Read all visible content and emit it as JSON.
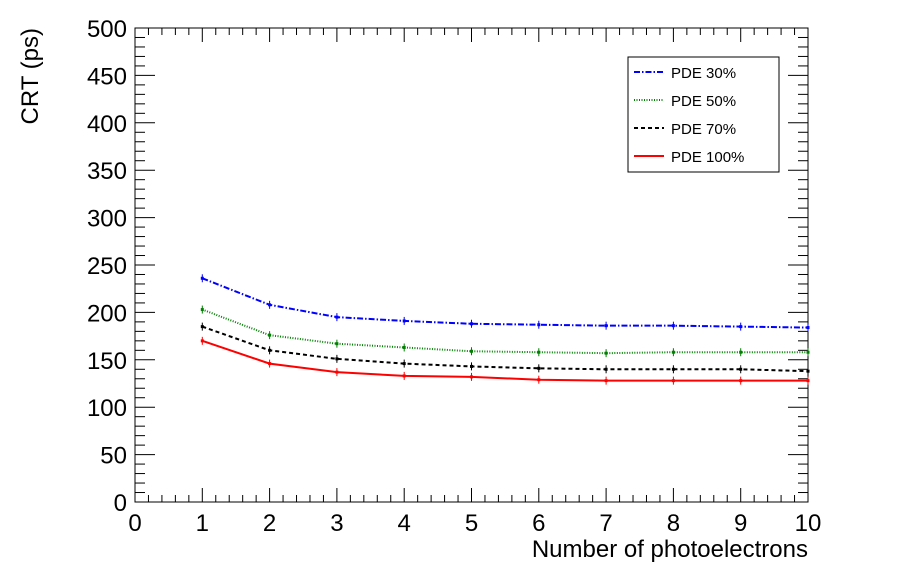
{
  "chart_data": {
    "type": "line",
    "xlabel": "Number of photoelectrons",
    "ylabel": "CRT (ps)",
    "xlim": [
      0,
      10
    ],
    "ylim": [
      0,
      500
    ],
    "xticks": [
      "0",
      "1",
      "2",
      "3",
      "4",
      "5",
      "6",
      "7",
      "8",
      "9",
      "10"
    ],
    "yticks": [
      "0",
      "50",
      "100",
      "150",
      "200",
      "250",
      "300",
      "350",
      "400",
      "450",
      "500"
    ],
    "grid": false,
    "legend_position": "top-right",
    "x": [
      1,
      2,
      3,
      4,
      5,
      6,
      7,
      8,
      9,
      10
    ],
    "series": [
      {
        "name": "PDE 30%",
        "color": "#0000ff",
        "dash": "dash-dot",
        "values": [
          236,
          208,
          195,
          191,
          188,
          187,
          186,
          186,
          185,
          184
        ]
      },
      {
        "name": "PDE 50%",
        "color": "#008000",
        "dash": "dotted",
        "values": [
          203,
          176,
          167,
          163,
          159,
          158,
          157,
          158,
          158,
          158
        ]
      },
      {
        "name": "PDE 70%",
        "color": "#000000",
        "dash": "dashed",
        "values": [
          185,
          160,
          151,
          146,
          143,
          141,
          140,
          140,
          140,
          138
        ]
      },
      {
        "name": "PDE 100%",
        "color": "#ff0000",
        "dash": "solid",
        "values": [
          170,
          146,
          137,
          133,
          132,
          129,
          128,
          128,
          128,
          128
        ]
      }
    ]
  }
}
